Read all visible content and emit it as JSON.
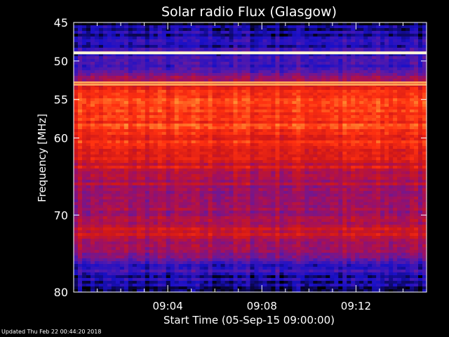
{
  "chart_data": {
    "type": "heatmap",
    "title": "Solar radio Flux (Glasgow)",
    "xlabel": "Start Time (05-Sep-15 09:00:00)",
    "ylabel": "Frequency [MHz]",
    "x_unit": "minutes after 09:00:00",
    "xlim": [
      0,
      15
    ],
    "ylim": [
      80,
      45
    ],
    "y_ticks": [
      45,
      50,
      55,
      60,
      70,
      80
    ],
    "y_tick_labels": [
      "45",
      "50",
      "55",
      "60",
      "70",
      "80"
    ],
    "x_ticks": [
      4,
      8,
      12
    ],
    "x_tick_labels": [
      "09:04",
      "09:08",
      "09:12"
    ],
    "colormap": [
      "#000000",
      "#1a10c8",
      "#5a1aa8",
      "#a01060",
      "#d01818",
      "#ff3010",
      "#ff8a30",
      "#fff0c0"
    ],
    "intensity_profile": {
      "frequency_mhz": [
        45,
        46,
        47.5,
        48.5,
        49.8,
        50.5,
        51.5,
        52.3,
        53.2,
        55,
        57,
        60,
        62,
        65,
        68,
        70,
        72,
        74,
        76,
        78,
        80
      ],
      "level": [
        0.05,
        0.12,
        0.15,
        0.2,
        0.2,
        0.18,
        0.25,
        0.45,
        0.62,
        0.72,
        0.74,
        0.68,
        0.6,
        0.5,
        0.42,
        0.38,
        0.55,
        0.45,
        0.25,
        0.12,
        0.1
      ]
    },
    "bright_lines_mhz": [
      48.9,
      52.8,
      53.1
    ],
    "grid": false,
    "legend": "none"
  },
  "footer": {
    "updated": "Updated Thu Feb 22 00:44:20 2018"
  }
}
